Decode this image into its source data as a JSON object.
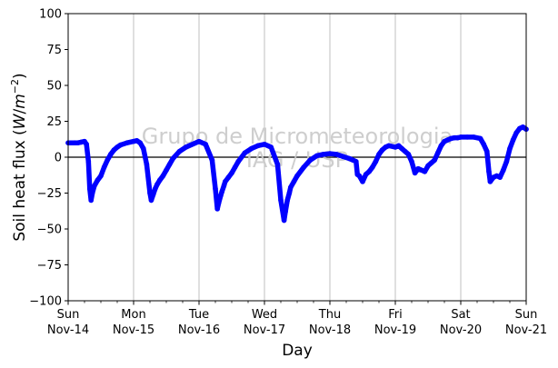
{
  "chart_data": {
    "type": "line",
    "title": "",
    "xlabel": "Day",
    "ylabel_main": "Soil heat flux (",
    "ylabel_unit_W": "W",
    "ylabel_unit_sep": "/",
    "ylabel_unit_m": "m",
    "ylabel_unit_exp": "−2",
    "ylabel_close": ")",
    "ylim": [
      -100,
      100
    ],
    "xlim": [
      0,
      7
    ],
    "yticks": [
      100,
      75,
      50,
      25,
      0,
      -25,
      -50,
      -75,
      -100
    ],
    "ytick_labels": [
      "100",
      "75",
      "50",
      "25",
      "0",
      "−25",
      "−50",
      "−75",
      "−100"
    ],
    "xticks": [
      0,
      1,
      2,
      3,
      4,
      5,
      6,
      7
    ],
    "xtick_labels": [
      {
        "day": "Sun",
        "date": "Nov-14"
      },
      {
        "day": "Mon",
        "date": "Nov-15"
      },
      {
        "day": "Tue",
        "date": "Nov-16"
      },
      {
        "day": "Wed",
        "date": "Nov-17"
      },
      {
        "day": "Thu",
        "date": "Nov-18"
      },
      {
        "day": "Fri",
        "date": "Nov-19"
      },
      {
        "day": "Sat",
        "date": "Nov-20"
      },
      {
        "day": "Sun",
        "date": "Nov-21"
      }
    ],
    "grid": "vertical",
    "zero_line": true,
    "series": [
      {
        "color": "#0000ff",
        "x": [
          0,
          0.1,
          0.15,
          0.2,
          0.25,
          0.28,
          0.31,
          0.33,
          0.35,
          0.37,
          0.4,
          0.45,
          0.5,
          0.55,
          0.6,
          0.65,
          0.7,
          0.75,
          0.8,
          0.9,
          1.0,
          1.05,
          1.1,
          1.15,
          1.2,
          1.25,
          1.27,
          1.3,
          1.33,
          1.36,
          1.4,
          1.45,
          1.5,
          1.55,
          1.6,
          1.7,
          1.8,
          2.0,
          2.1,
          2.2,
          2.25,
          2.28,
          2.3,
          2.33,
          2.35,
          2.38,
          2.4,
          2.45,
          2.5,
          2.55,
          2.6,
          2.7,
          2.8,
          2.9,
          3.0,
          3.1,
          3.2,
          3.25,
          3.3,
          3.32,
          3.35,
          3.38,
          3.4,
          3.45,
          3.5,
          3.6,
          3.7,
          3.8,
          3.9,
          4.0,
          4.1,
          4.2,
          4.3,
          4.4,
          4.42,
          4.45,
          4.5,
          4.55,
          4.6,
          4.65,
          4.7,
          4.75,
          4.8,
          4.85,
          4.9,
          5.0,
          5.05,
          5.1,
          5.15,
          5.2,
          5.25,
          5.3,
          5.35,
          5.4,
          5.45,
          5.5,
          5.55,
          5.6,
          5.65,
          5.7,
          5.75,
          5.8,
          5.85,
          5.9,
          5.95,
          6.0,
          6.1,
          6.2,
          6.3,
          6.35,
          6.4,
          6.43,
          6.45,
          6.5,
          6.55,
          6.6,
          6.65,
          6.7,
          6.75,
          6.8,
          6.85,
          6.9,
          6.95,
          7.0
        ],
        "y": [
          10,
          10,
          10,
          10.5,
          11,
          9,
          -3,
          -22,
          -30,
          -25,
          -20,
          -16,
          -13,
          -7,
          -2,
          2,
          5,
          7,
          8.5,
          10,
          11,
          11.5,
          10,
          6,
          -5,
          -25,
          -30,
          -26,
          -22,
          -19,
          -16,
          -13,
          -9,
          -5,
          -1,
          4,
          7,
          11,
          9,
          -2,
          -22,
          -36,
          -32,
          -27,
          -24,
          -20,
          -17,
          -14,
          -11,
          -7,
          -3,
          3,
          6,
          8,
          9,
          7,
          -5,
          -30,
          -44,
          -38,
          -30,
          -25,
          -21,
          -17,
          -13,
          -7,
          -2,
          1,
          2,
          2.5,
          2,
          0.5,
          -1,
          -3,
          -12,
          -13,
          -17,
          -12,
          -10,
          -7,
          -3,
          2,
          5,
          7,
          8,
          7,
          8,
          6,
          4,
          2,
          -3,
          -11,
          -8,
          -9,
          -10,
          -6,
          -4,
          -2,
          3,
          8,
          11,
          12,
          13,
          13.5,
          13.5,
          14,
          14,
          14,
          13,
          9,
          4,
          -10,
          -17,
          -14,
          -13,
          -14,
          -9,
          -3,
          6,
          12,
          17,
          20,
          21,
          19.5
        ]
      }
    ],
    "watermark_line1": "Grupo de Micrometeorologia",
    "watermark_line2": "IAG / USP"
  }
}
